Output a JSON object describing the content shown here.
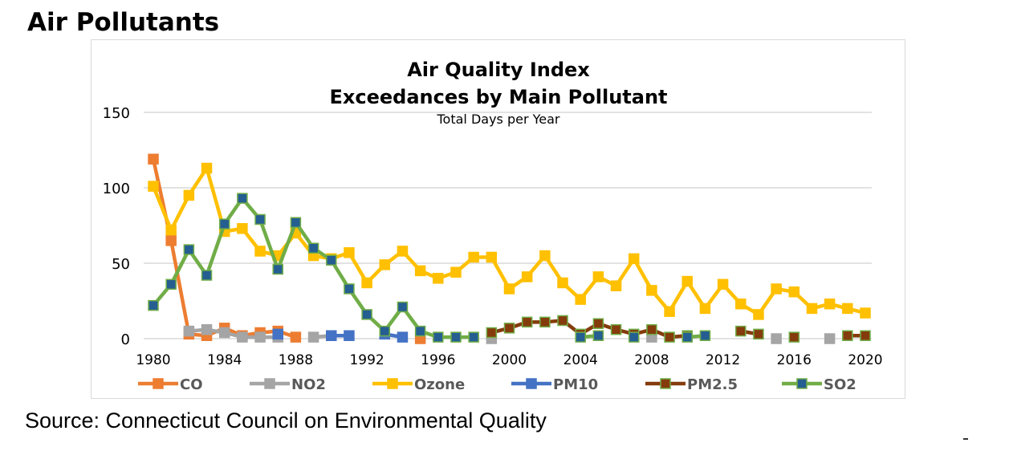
{
  "page": {
    "title": "Air Pollutants",
    "source": "Source: Connecticut Council on Environmental Quality"
  },
  "chart_data": {
    "type": "line",
    "title": "Air Quality Index",
    "title_line2": "Exceedances by Main Pollutant",
    "subtitle": "Total Days per Year",
    "xlabel": "",
    "ylabel": "",
    "xlim": [
      1980,
      2020
    ],
    "ylim": [
      0,
      150
    ],
    "yticks": [
      0,
      50,
      100,
      150
    ],
    "xticks": [
      1980,
      1984,
      1988,
      1992,
      1996,
      2000,
      2004,
      2008,
      2012,
      2016,
      2020
    ],
    "grid": true,
    "legend": "bottom",
    "series": [
      {
        "name": "CO",
        "color": "#ED7D31",
        "marker_fill": "#ED7D31",
        "marker_border": "#ED7D31",
        "points": [
          [
            1980,
            119
          ],
          [
            1981,
            65
          ],
          [
            1982,
            3
          ],
          [
            1983,
            2
          ],
          [
            1984,
            7
          ],
          [
            1985,
            2
          ],
          [
            1986,
            4
          ],
          [
            1987,
            5
          ],
          [
            1988,
            1
          ],
          [
            1995,
            0
          ]
        ]
      },
      {
        "name": "NO2",
        "color": "#A5A5A5",
        "marker_fill": "#A5A5A5",
        "marker_border": "#A5A5A5",
        "points": [
          [
            1982,
            5
          ],
          [
            1983,
            6
          ],
          [
            1984,
            4
          ],
          [
            1985,
            1
          ],
          [
            1986,
            1
          ],
          [
            1987,
            1
          ],
          [
            1989,
            1
          ],
          [
            1990,
            2
          ],
          [
            1999,
            0
          ],
          [
            2008,
            1
          ],
          [
            2015,
            0
          ],
          [
            2018,
            0
          ]
        ]
      },
      {
        "name": "Ozone",
        "color": "#FFC000",
        "marker_fill": "#FFC000",
        "marker_border": "#FFC000",
        "points": [
          [
            1980,
            101
          ],
          [
            1981,
            72
          ],
          [
            1982,
            95
          ],
          [
            1983,
            113
          ],
          [
            1984,
            71
          ],
          [
            1985,
            73
          ],
          [
            1986,
            58
          ],
          [
            1987,
            55
          ],
          [
            1988,
            70
          ],
          [
            1989,
            55
          ],
          [
            1990,
            53
          ],
          [
            1991,
            57
          ],
          [
            1992,
            37
          ],
          [
            1993,
            49
          ],
          [
            1994,
            58
          ],
          [
            1995,
            45
          ],
          [
            1996,
            40
          ],
          [
            1997,
            44
          ],
          [
            1998,
            54
          ],
          [
            1999,
            54
          ],
          [
            2000,
            33
          ],
          [
            2001,
            41
          ],
          [
            2002,
            55
          ],
          [
            2003,
            37
          ],
          [
            2004,
            26
          ],
          [
            2005,
            41
          ],
          [
            2006,
            35
          ],
          [
            2007,
            53
          ],
          [
            2008,
            32
          ],
          [
            2009,
            18
          ],
          [
            2010,
            38
          ],
          [
            2011,
            20
          ],
          [
            2012,
            36
          ],
          [
            2013,
            23
          ],
          [
            2014,
            16
          ],
          [
            2015,
            33
          ],
          [
            2016,
            31
          ],
          [
            2017,
            20
          ],
          [
            2018,
            23
          ],
          [
            2019,
            20
          ],
          [
            2020,
            17
          ]
        ]
      },
      {
        "name": "PM10",
        "color": "#4472C4",
        "marker_fill": "#4472C4",
        "marker_border": "#4472C4",
        "points": [
          [
            1987,
            3
          ],
          [
            1990,
            2
          ],
          [
            1991,
            2
          ],
          [
            1993,
            3
          ],
          [
            1994,
            1
          ]
        ]
      },
      {
        "name": "PM2.5",
        "color": "#843C0C",
        "marker_fill": "#843C0C",
        "marker_border": "#70AD47",
        "points": [
          [
            1999,
            4
          ],
          [
            2000,
            7
          ],
          [
            2001,
            11
          ],
          [
            2002,
            11
          ],
          [
            2003,
            12
          ],
          [
            2004,
            3
          ],
          [
            2005,
            10
          ],
          [
            2006,
            6
          ],
          [
            2007,
            3
          ],
          [
            2008,
            6
          ],
          [
            2009,
            1
          ],
          [
            2010,
            2
          ],
          [
            2013,
            5
          ],
          [
            2014,
            3
          ],
          [
            2016,
            1
          ],
          [
            2019,
            2
          ],
          [
            2020,
            2
          ]
        ]
      },
      {
        "name": "SO2",
        "color": "#70AD47",
        "marker_fill": "#255E91",
        "marker_border": "#70AD47",
        "points": [
          [
            1980,
            22
          ],
          [
            1981,
            36
          ],
          [
            1982,
            59
          ],
          [
            1983,
            42
          ],
          [
            1984,
            76
          ],
          [
            1985,
            93
          ],
          [
            1986,
            79
          ],
          [
            1987,
            46
          ],
          [
            1988,
            77
          ],
          [
            1989,
            60
          ],
          [
            1990,
            52
          ],
          [
            1991,
            33
          ],
          [
            1992,
            16
          ],
          [
            1993,
            5
          ],
          [
            1994,
            21
          ],
          [
            1995,
            5
          ],
          [
            1996,
            1
          ],
          [
            1997,
            1
          ],
          [
            1998,
            1
          ],
          [
            2004,
            1
          ],
          [
            2005,
            2
          ],
          [
            2007,
            1
          ],
          [
            2010,
            1
          ],
          [
            2011,
            2
          ]
        ]
      }
    ]
  }
}
